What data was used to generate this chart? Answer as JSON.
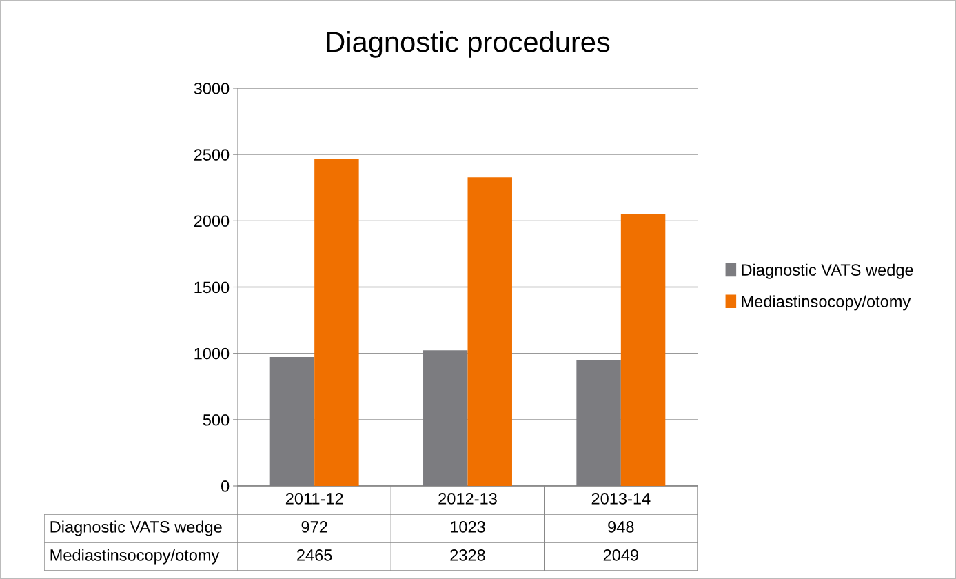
{
  "chart_data": {
    "type": "bar",
    "title": "Diagnostic procedures",
    "categories": [
      "2011-12",
      "2012-13",
      "2013-14"
    ],
    "series": [
      {
        "name": "Diagnostic VATS wedge",
        "color": "#7c7c80",
        "values": [
          972,
          1023,
          948
        ]
      },
      {
        "name": "Mediastinsocopy/otomy",
        "color": "#f07000",
        "values": [
          2465,
          2328,
          2049
        ]
      }
    ],
    "ylim": [
      0,
      3000
    ],
    "yticks": [
      0,
      500,
      1000,
      1500,
      2000,
      2500,
      3000
    ],
    "grid": "y",
    "legend": "right",
    "data_labels": true
  }
}
